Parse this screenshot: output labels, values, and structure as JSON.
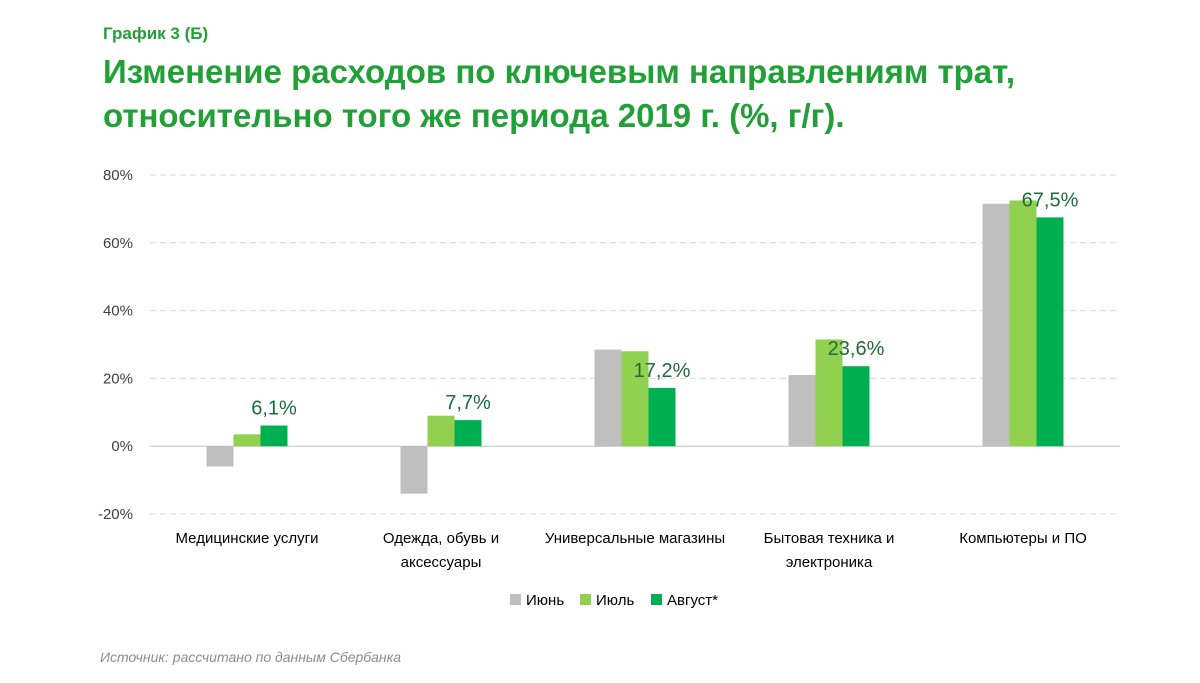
{
  "header": {
    "label": "График 3 (Б)",
    "title_line1": "Изменение расходов по ключевым направлениям трат,",
    "title_line2": "относительно того же периода 2019 г.  (%, г/г)."
  },
  "footer": {
    "source": "Источник: рассчитано по данным Сбербанка"
  },
  "chart_data": {
    "type": "bar",
    "categories": [
      [
        "Медицинские услуги"
      ],
      [
        "Одежда, обувь и",
        "аксессуары"
      ],
      [
        "Универсальные магазины"
      ],
      [
        "Бытовая техника и",
        "электроника"
      ],
      [
        "Компьютеры и ПО"
      ]
    ],
    "series": [
      {
        "name": "Июнь",
        "color": "#bfbfbf",
        "values": [
          -6.0,
          -14.0,
          28.5,
          21.0,
          71.5
        ]
      },
      {
        "name": "Июль",
        "color": "#92d050",
        "values": [
          3.5,
          9.0,
          28.0,
          31.5,
          72.5
        ]
      },
      {
        "name": "Август*",
        "color": "#00b050",
        "values": [
          6.1,
          7.7,
          17.2,
          23.6,
          67.5
        ]
      }
    ],
    "data_labels": [
      {
        "series": 2,
        "category": 0,
        "text": "6,1%"
      },
      {
        "series": 2,
        "category": 1,
        "text": "7,7%"
      },
      {
        "series": 2,
        "category": 2,
        "text": "17,2%"
      },
      {
        "series": 2,
        "category": 3,
        "text": "23,6%"
      },
      {
        "series": 2,
        "category": 4,
        "text": "67,5%"
      }
    ],
    "y_ticks": [
      {
        "value": 80,
        "label": "80%"
      },
      {
        "value": 60,
        "label": "60%"
      },
      {
        "value": 40,
        "label": "40%"
      },
      {
        "value": 20,
        "label": "20%"
      },
      {
        "value": 0,
        "label": "0%"
      },
      {
        "value": -20,
        "label": "-20%"
      }
    ],
    "ylim": [
      -20,
      80
    ],
    "grid": "horizontal-dashed",
    "legend_position": "bottom-center",
    "data_label_color": "#1e6b3c"
  }
}
